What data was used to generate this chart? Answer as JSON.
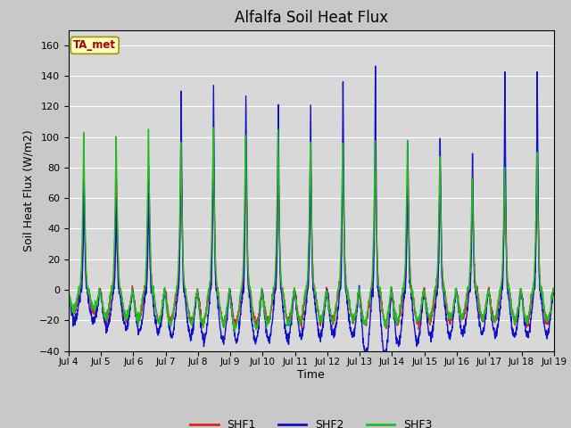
{
  "title": "Alfalfa Soil Heat Flux",
  "xlabel": "Time",
  "ylabel": "Soil Heat Flux (W/m2)",
  "ylim": [
    -40,
    170
  ],
  "yticks": [
    -40,
    -20,
    0,
    20,
    40,
    60,
    80,
    100,
    120,
    140,
    160
  ],
  "fig_bg_color": "#c8c8c8",
  "plot_bg_color": "#d8d8d8",
  "grid_color": "#ffffff",
  "tag_text": "TA_met",
  "tag_bg": "#ffffbb",
  "tag_fg": "#aa0000",
  "series": {
    "SHF1": {
      "color": "#dd2222",
      "lw": 1.0
    },
    "SHF2": {
      "color": "#1111cc",
      "lw": 1.0
    },
    "SHF3": {
      "color": "#22bb22",
      "lw": 1.0
    }
  },
  "n_days": 15,
  "ppd": 144,
  "shf1_peaks": [
    65,
    75,
    80,
    90,
    90,
    85,
    85,
    83,
    85,
    90,
    90,
    85,
    75,
    75,
    90
  ],
  "shf1_troughs": [
    -15,
    -20,
    -20,
    -20,
    -22,
    -22,
    -20,
    -20,
    -20,
    -22,
    -22,
    -20,
    -18,
    -20,
    -22
  ],
  "shf2_peaks": [
    78,
    62,
    75,
    132,
    135,
    132,
    126,
    122,
    138,
    148,
    101,
    101,
    92,
    146,
    146
  ],
  "shf2_troughs": [
    -20,
    -25,
    -28,
    -30,
    -33,
    -33,
    -33,
    -30,
    -30,
    -42,
    -35,
    -30,
    -28,
    -30,
    -30
  ],
  "shf3_peaks": [
    107,
    104,
    110,
    100,
    108,
    105,
    105,
    100,
    100,
    100,
    100,
    90,
    75,
    85,
    90
  ],
  "shf3_troughs": [
    -12,
    -18,
    -20,
    -22,
    -22,
    -25,
    -22,
    -20,
    -20,
    -22,
    -20,
    -18,
    -18,
    -20,
    -20
  ],
  "legend_labels": [
    "SHF1",
    "SHF2",
    "SHF3"
  ],
  "legend_colors": [
    "#dd2222",
    "#1111cc",
    "#22bb22"
  ],
  "x_tick_labels": [
    "Jul 4",
    "Jul 5",
    "Jul 6",
    "Jul 7",
    "Jul 8",
    "Jul 9",
    "Jul 10",
    "Jul 11",
    "Jul 12",
    "Jul 13",
    "Jul 14",
    "Jul 15",
    "Jul 16",
    "Jul 17",
    "Jul 18",
    "Jul 19"
  ]
}
